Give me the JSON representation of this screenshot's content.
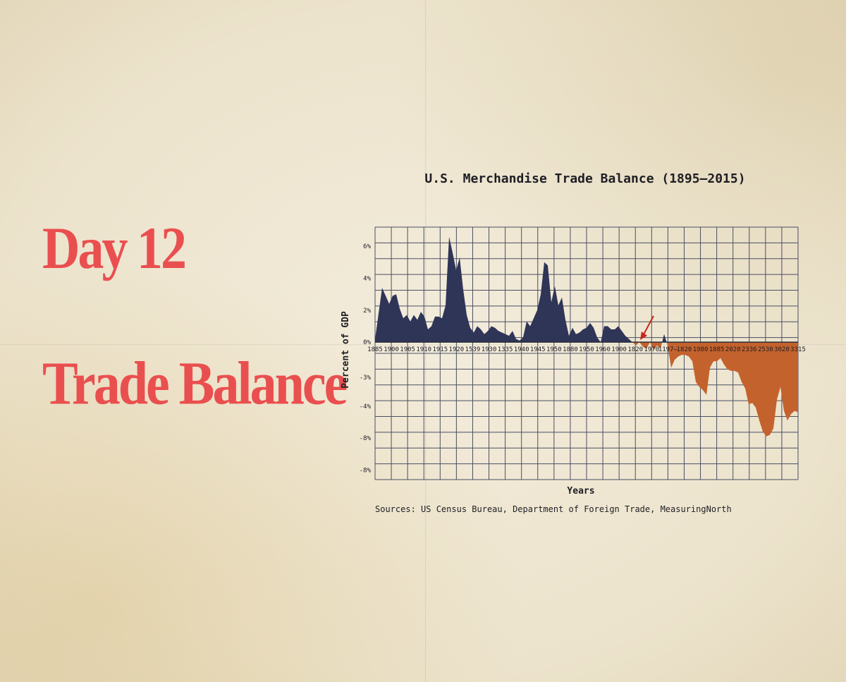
{
  "headline": {
    "day": "Day 12",
    "topic": "Trade Balance"
  },
  "colors": {
    "headline": "#ea4f4f",
    "positive_fill": "#2f3557",
    "negative_fill": "#c4622d",
    "grid": "#4a4e63",
    "annotation_arrow": "#c8281e"
  },
  "chart_data": {
    "type": "area",
    "title": "U.S. Merchandise Trade Balance (1895–2015)",
    "xlabel": "Years",
    "ylabel": "Percent of GDP",
    "source": "Sources: US Census Bureau, Department of Foreign Trade, MeasuringNorth",
    "grid": true,
    "x_tick_labels": [
      "1885",
      "1900",
      "1905",
      "1910",
      "1915",
      "1920",
      "1539",
      "1930",
      "1335",
      "1940",
      "1945",
      "1950",
      "1880",
      "1950",
      "1960",
      "1900",
      "1820",
      "1970",
      "1197̶",
      "1820",
      "1980",
      "1885",
      "2020",
      "2336",
      "2530",
      "3020",
      "3315"
    ],
    "y_tick_labels": [
      "6%",
      "4%",
      "2%",
      "0%",
      "-3%",
      "-4%",
      "-8%",
      "-8%"
    ],
    "annotation": "arrow pointing to a small dip below 0% near the early 1970s",
    "xlim": [
      1895,
      2015
    ],
    "x": [
      1895,
      1896,
      1897,
      1898,
      1899,
      1900,
      1901,
      1902,
      1903,
      1904,
      1905,
      1906,
      1907,
      1908,
      1909,
      1910,
      1911,
      1912,
      1913,
      1914,
      1915,
      1916,
      1917,
      1918,
      1919,
      1920,
      1921,
      1922,
      1923,
      1924,
      1925,
      1926,
      1927,
      1928,
      1929,
      1930,
      1931,
      1932,
      1933,
      1934,
      1935,
      1936,
      1937,
      1938,
      1939,
      1940,
      1941,
      1942,
      1943,
      1944,
      1945,
      1946,
      1947,
      1948,
      1949,
      1950,
      1951,
      1952,
      1953,
      1954,
      1955,
      1956,
      1957,
      1958,
      1959,
      1960,
      1961,
      1962,
      1963,
      1964,
      1965,
      1966,
      1967,
      1968,
      1969,
      1970,
      1971,
      1972,
      1973,
      1974,
      1975,
      1976,
      1977,
      1978,
      1979,
      1980,
      1981,
      1982,
      1983,
      1984,
      1985,
      1986,
      1987,
      1988,
      1989,
      1990,
      1991,
      1992,
      1993,
      1994,
      1995,
      1996,
      1997,
      1998,
      1999,
      2000,
      2001,
      2002,
      2003,
      2004,
      2005,
      2006,
      2007,
      2008,
      2009,
      2010,
      2011,
      2012,
      2013,
      2014,
      2015
    ],
    "values": [
      0.2,
      1.8,
      3.4,
      2.9,
      2.4,
      2.9,
      3.0,
      2.1,
      1.5,
      1.7,
      1.3,
      1.7,
      1.4,
      1.9,
      1.6,
      0.8,
      1.0,
      1.6,
      1.6,
      1.5,
      2.3,
      6.6,
      5.6,
      4.5,
      5.3,
      3.3,
      1.7,
      0.9,
      0.6,
      1.0,
      0.8,
      0.5,
      0.7,
      1.0,
      0.9,
      0.7,
      0.6,
      0.5,
      0.4,
      0.7,
      0.2,
      0.1,
      0.3,
      1.3,
      1.0,
      1.5,
      2.0,
      3.0,
      5.0,
      4.8,
      2.5,
      3.5,
      2.3,
      2.8,
      1.4,
      0.4,
      0.9,
      0.5,
      0.6,
      0.8,
      0.9,
      1.2,
      0.9,
      0.3,
      0.0,
      1.0,
      1.0,
      0.8,
      0.8,
      1.0,
      0.7,
      0.4,
      0.2,
      0.0,
      -0.2,
      0.0,
      -0.3,
      -0.4,
      0.0,
      -0.5,
      -0.2,
      -0.4,
      0.5,
      -0.2,
      -1.6,
      -1.1,
      -0.9,
      -0.8,
      -0.8,
      -0.9,
      -1.2,
      -2.5,
      -2.8,
      -3.0,
      -3.3,
      -1.6,
      -1.2,
      -1.2,
      -1.0,
      -1.4,
      -1.7,
      -1.8,
      -1.8,
      -1.9,
      -2.5,
      -2.9,
      -3.9,
      -3.8,
      -4.1,
      -4.9,
      -5.6,
      -5.9,
      -5.8,
      -5.4,
      -3.6,
      -2.8,
      -4.3,
      -4.9,
      -4.5,
      -4.3,
      -4.4
    ],
    "ylim": [
      -8.6,
      7.2
    ]
  }
}
